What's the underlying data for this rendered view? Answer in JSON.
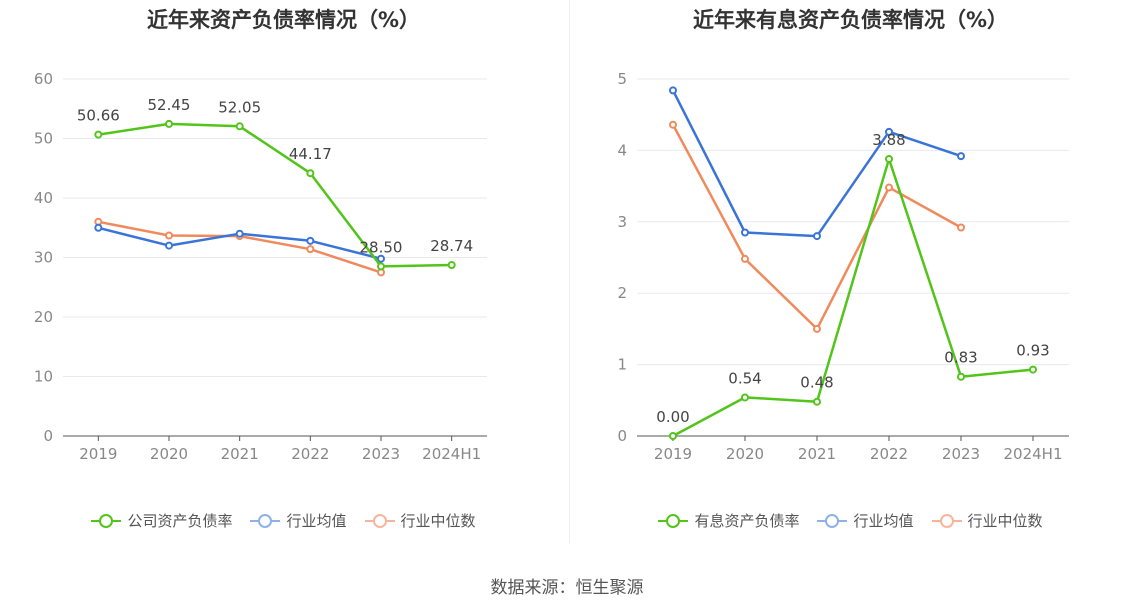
{
  "source_text": "数据来源：恒生聚源",
  "chart_data": [
    {
      "type": "line",
      "title": "近年来资产负债率情况（%）",
      "categories": [
        "2019",
        "2020",
        "2021",
        "2022",
        "2023",
        "2024H1"
      ],
      "ylim": [
        0,
        60
      ],
      "yticks": [
        0,
        10,
        20,
        30,
        40,
        50,
        60
      ],
      "grid": true,
      "legend_position": "bottom",
      "series": [
        {
          "name": "公司资产负债率",
          "color": "#52c41a",
          "values": [
            50.66,
            52.45,
            52.05,
            44.17,
            28.5,
            28.74
          ],
          "labels": [
            "50.66",
            "52.45",
            "52.05",
            "44.17",
            "28.50",
            "28.74"
          ]
        },
        {
          "name": "行业均值",
          "color": "#3a74d8",
          "legend_color": "#8fb1ea",
          "values": [
            35.0,
            32.0,
            34.0,
            32.8,
            29.8,
            null
          ]
        },
        {
          "name": "行业中位数",
          "color": "#f08a5d",
          "legend_color": "#f6b59a",
          "values": [
            36.0,
            33.7,
            33.6,
            31.4,
            27.5,
            null
          ]
        }
      ]
    },
    {
      "type": "line",
      "title": "近年来有息资产负债率情况（%）",
      "categories": [
        "2019",
        "2020",
        "2021",
        "2022",
        "2023",
        "2024H1"
      ],
      "ylim": [
        0,
        5
      ],
      "yticks": [
        0,
        1,
        2,
        3,
        4,
        5
      ],
      "grid": true,
      "legend_position": "bottom",
      "series": [
        {
          "name": "有息资产负债率",
          "color": "#52c41a",
          "values": [
            0.0,
            0.54,
            0.48,
            3.88,
            0.83,
            0.93
          ],
          "labels": [
            "0.00",
            "0.54",
            "0.48",
            "3.88",
            "0.83",
            "0.93"
          ]
        },
        {
          "name": "行业均值",
          "color": "#3a74d8",
          "legend_color": "#8fb1ea",
          "values": [
            4.84,
            2.85,
            2.8,
            4.26,
            3.92,
            null
          ]
        },
        {
          "name": "行业中位数",
          "color": "#f08a5d",
          "legend_color": "#f6b59a",
          "values": [
            4.36,
            2.48,
            1.5,
            3.48,
            2.92,
            null
          ]
        }
      ]
    }
  ]
}
